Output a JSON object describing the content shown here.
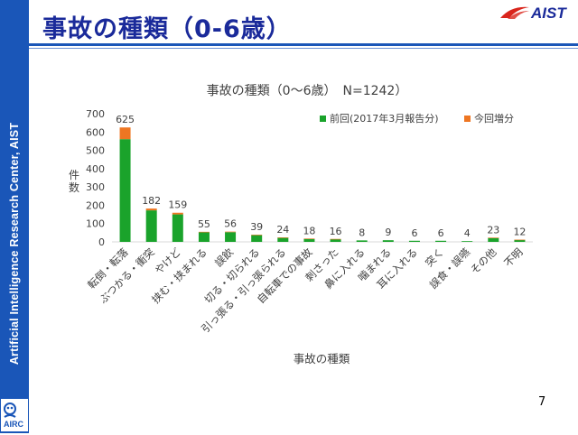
{
  "slide": {
    "title": "事故の種類（0-6歳）",
    "side_label": "Artificial Intelligence Research Center, AIST",
    "aist_logo": "AIST",
    "airc_logo": "AIRC",
    "page_number": "7",
    "colors": {
      "sidebar": "#1a56b8",
      "title": "#1a2a9a",
      "logo_red": "#d9251c"
    }
  },
  "chart_data": {
    "type": "bar",
    "stacked": true,
    "title": "事故の種類（0〜6歳）　N=1242）",
    "xlabel": "事故の種類",
    "ylabel": "件数",
    "ylim": [
      0,
      700
    ],
    "yticks": [
      0,
      100,
      200,
      300,
      400,
      500,
      600,
      700
    ],
    "grid": false,
    "legend_position": "top-right",
    "categories": [
      "転倒・転落",
      "ぶつかる・衝突",
      "やけど",
      "挟む・挟まれる",
      "誤飲",
      "切る・切られる",
      "引っ張る・引っ張られる",
      "自転車での事故",
      "刺さった",
      "鼻に入れる",
      "噛まれる",
      "耳に入れる",
      "突く",
      "誤食・誤嚥",
      "その他",
      "不明"
    ],
    "series": [
      {
        "name": "前回(2017年3月報告分)",
        "color": "#1aa32b",
        "values": [
          561,
          172,
          150,
          52,
          53,
          37,
          23,
          17,
          15,
          8,
          9,
          6,
          6,
          4,
          22,
          11
        ]
      },
      {
        "name": "今回増分",
        "color": "#ee7622",
        "values": [
          64,
          10,
          9,
          3,
          3,
          2,
          1,
          1,
          1,
          0,
          0,
          0,
          0,
          0,
          1,
          1
        ]
      }
    ],
    "totals": [
      625,
      182,
      159,
      55,
      56,
      39,
      24,
      18,
      16,
      8,
      9,
      6,
      6,
      4,
      23,
      12
    ]
  }
}
